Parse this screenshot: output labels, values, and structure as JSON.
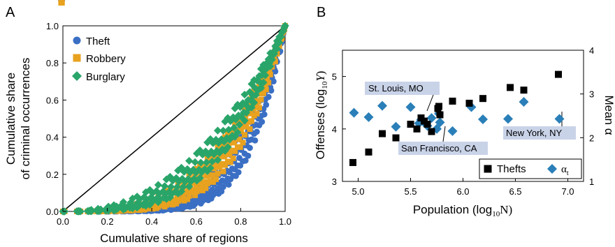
{
  "colors": {
    "theft": "#3a6fc4",
    "robbery": "#e8a21f",
    "burglary": "#2aa56a",
    "thefts_b": "#000000",
    "alpha_b": "#2a7fb8",
    "callout_bg": "#c9d3e8"
  },
  "chart_data": [
    {
      "panel_label": "A",
      "type": "scatter",
      "xlabel": "Cumulative share of regions",
      "ylabel_line1": "Cumulative share",
      "ylabel_line2": "of criminal occurrences",
      "xlim": [
        0.0,
        1.0
      ],
      "ylim": [
        0.0,
        1.0
      ],
      "xticks": [
        "0.0",
        "0.2",
        "0.4",
        "0.6",
        "0.8",
        "1.0"
      ],
      "yticks": [
        "0.0",
        "0.2",
        "0.4",
        "0.6",
        "0.8",
        "1.0"
      ],
      "equality_line": true,
      "legend_position": "top-left",
      "series": [
        {
          "name": "Theft",
          "marker": "circle",
          "color_key": "theft",
          "curve_exponents": [
            3.8,
            4.2,
            4.6,
            5.0,
            5.4,
            5.8,
            6.2,
            6.6
          ]
        },
        {
          "name": "Robbery",
          "marker": "square",
          "color_key": "robbery",
          "curve_exponents": [
            2.9,
            3.2,
            3.5,
            3.8,
            4.1,
            4.4,
            4.7
          ]
        },
        {
          "name": "Burglary",
          "marker": "diamond",
          "color_key": "burglary",
          "curve_exponents": [
            2.3,
            2.55,
            2.8,
            3.05,
            3.3,
            3.55
          ]
        }
      ]
    },
    {
      "panel_label": "B",
      "type": "scatter",
      "xlabel_prefix": "Population (log",
      "xlabel_sub": "10",
      "xlabel_suffix": "N)",
      "ylabel_prefix": "Offenses (log",
      "ylabel_sub": "10",
      "ylabel_var": "Y",
      "ylabel_suffix": ")",
      "y2label": "Mean α",
      "xlim": [
        4.85,
        7.15
      ],
      "ylim": [
        3.0,
        5.5
      ],
      "y2lim": [
        1.0,
        4.0
      ],
      "xticks": [
        "5.0",
        "5.5",
        "6.0",
        "6.5",
        "7.0"
      ],
      "yticks": [
        "3",
        "4",
        "5"
      ],
      "y2ticks": [
        "1",
        "2",
        "3",
        "4"
      ],
      "legend_position": "bottom-right",
      "series": [
        {
          "name": "Thefts",
          "marker": "square",
          "axis": "left",
          "points": [
            [
              4.95,
              3.36
            ],
            [
              5.1,
              3.56
            ],
            [
              5.23,
              3.91
            ],
            [
              5.36,
              3.83
            ],
            [
              5.5,
              4.09
            ],
            [
              5.56,
              4.0
            ],
            [
              5.6,
              4.21
            ],
            [
              5.63,
              4.15
            ],
            [
              5.66,
              4.09
            ],
            [
              5.7,
              3.95
            ],
            [
              5.76,
              4.39
            ],
            [
              5.77,
              4.43
            ],
            [
              5.78,
              4.27
            ],
            [
              5.9,
              4.53
            ],
            [
              6.06,
              4.49
            ],
            [
              6.19,
              4.58
            ],
            [
              6.45,
              4.79
            ],
            [
              6.58,
              4.74
            ],
            [
              6.91,
              5.04
            ]
          ]
        },
        {
          "name": "α",
          "name_sub": "t",
          "marker": "diamond",
          "axis": "right",
          "points": [
            [
              4.96,
              2.57
            ],
            [
              5.1,
              2.47
            ],
            [
              5.23,
              2.73
            ],
            [
              5.36,
              2.25
            ],
            [
              5.5,
              2.7
            ],
            [
              5.58,
              2.33
            ],
            [
              5.6,
              2.41
            ],
            [
              5.63,
              2.35
            ],
            [
              5.66,
              2.27
            ],
            [
              5.7,
              2.45
            ],
            [
              5.75,
              2.2
            ],
            [
              5.77,
              2.55
            ],
            [
              5.78,
              2.35
            ],
            [
              5.9,
              2.15
            ],
            [
              6.08,
              2.7
            ],
            [
              6.19,
              2.42
            ],
            [
              6.43,
              2.43
            ],
            [
              6.58,
              2.82
            ],
            [
              6.92,
              2.43
            ]
          ]
        }
      ],
      "annotations": [
        {
          "text": "St. Louis, MO"
        },
        {
          "text": "San Francisco, CA"
        },
        {
          "text": "New York, NY"
        }
      ]
    }
  ]
}
